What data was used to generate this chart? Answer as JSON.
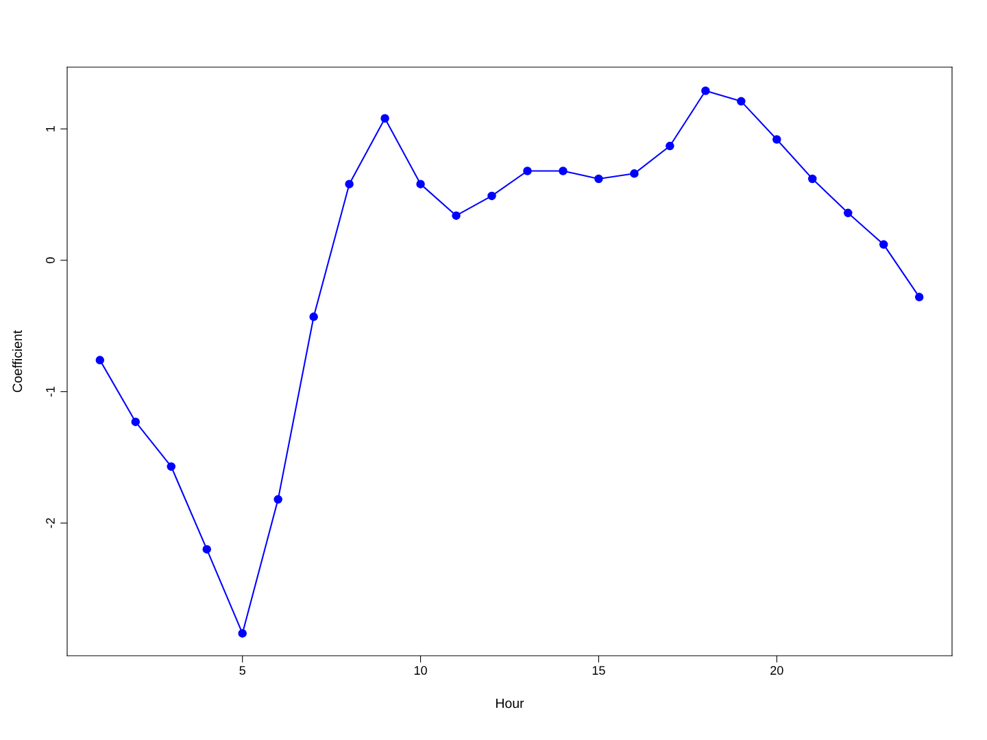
{
  "chart_data": {
    "type": "line",
    "xlabel": "Hour",
    "ylabel": "Coefficient",
    "x": [
      1,
      2,
      3,
      4,
      5,
      6,
      7,
      8,
      9,
      10,
      11,
      12,
      13,
      14,
      15,
      16,
      17,
      18,
      19,
      20,
      21,
      22,
      23,
      24
    ],
    "series": [
      {
        "color": "#0000ff",
        "values": [
          -0.76,
          -1.23,
          -1.57,
          -2.2,
          -2.84,
          -1.82,
          -0.43,
          0.58,
          1.08,
          0.58,
          0.34,
          0.49,
          0.68,
          0.68,
          0.62,
          0.66,
          0.87,
          1.29,
          1.21,
          0.92,
          0.62,
          0.36,
          0.12,
          -0.28
        ]
      }
    ],
    "xlim": [
      0.08,
      24.92
    ],
    "ylim": [
      -3.01,
      1.47
    ],
    "xticks": [
      5,
      10,
      15,
      20
    ],
    "yticks": [
      -2,
      -1,
      0,
      1
    ],
    "marker": "circle",
    "line_style": "solid",
    "grid": false,
    "legend": false
  }
}
